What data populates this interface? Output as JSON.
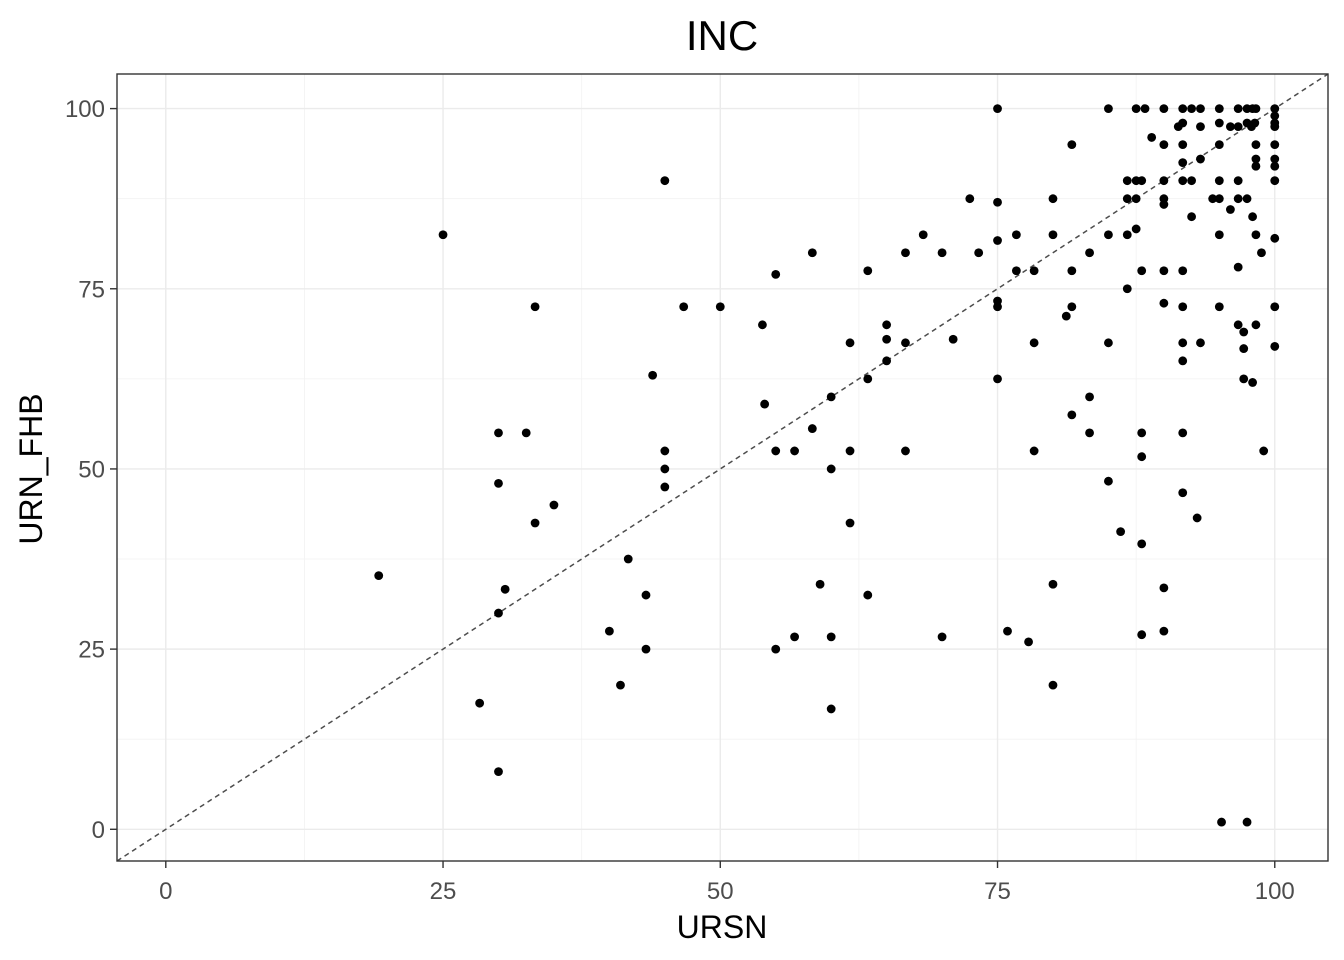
{
  "chart_data": {
    "type": "scatter",
    "title": "INC",
    "xlabel": "URSN",
    "ylabel": "URN_FHB",
    "xlim": [
      -4.4,
      104.8
    ],
    "ylim": [
      -4.4,
      104.8
    ],
    "x_ticks": [
      0,
      25,
      50,
      75,
      100
    ],
    "y_ticks": [
      0,
      25,
      50,
      75,
      100
    ],
    "x_tick_labels": [
      "0",
      "25",
      "50",
      "75",
      "100"
    ],
    "y_tick_labels": [
      "0",
      "25",
      "50",
      "75",
      "100"
    ],
    "grid": true,
    "reference_line": {
      "style": "dashed",
      "slope": 1,
      "intercept": 0
    },
    "colors": {
      "points": "#000000",
      "reference_line": "#4d4d4d",
      "grid": "#ebebeb"
    },
    "points": [
      [
        19.2,
        35.2
      ],
      [
        25,
        82.5
      ],
      [
        28.3,
        17.5
      ],
      [
        30,
        55
      ],
      [
        30,
        48
      ],
      [
        30,
        30
      ],
      [
        30,
        8
      ],
      [
        30.6,
        33.3
      ],
      [
        32.5,
        55
      ],
      [
        33.3,
        72.5
      ],
      [
        33.3,
        42.5
      ],
      [
        35,
        45
      ],
      [
        40,
        27.5
      ],
      [
        41,
        20
      ],
      [
        41.7,
        37.5
      ],
      [
        43.3,
        32.5
      ],
      [
        43.3,
        25
      ],
      [
        43.9,
        63
      ],
      [
        45,
        90
      ],
      [
        45,
        52.5
      ],
      [
        45,
        50
      ],
      [
        45,
        47.5
      ],
      [
        46.7,
        72.5
      ],
      [
        50,
        72.5
      ],
      [
        53.8,
        70
      ],
      [
        54,
        59
      ],
      [
        55,
        77
      ],
      [
        55,
        52.5
      ],
      [
        55,
        25
      ],
      [
        56.7,
        52.5
      ],
      [
        56.7,
        26.7
      ],
      [
        58.3,
        80
      ],
      [
        58.3,
        55.6
      ],
      [
        59,
        34
      ],
      [
        60,
        60
      ],
      [
        60,
        50
      ],
      [
        60,
        26.7
      ],
      [
        60,
        16.7
      ],
      [
        61.7,
        67.5
      ],
      [
        61.7,
        52.5
      ],
      [
        61.7,
        42.5
      ],
      [
        63.3,
        77.5
      ],
      [
        63.3,
        62.5
      ],
      [
        63.3,
        32.5
      ],
      [
        65,
        70
      ],
      [
        65,
        68
      ],
      [
        65,
        65
      ],
      [
        66.7,
        80
      ],
      [
        66.7,
        67.5
      ],
      [
        66.7,
        52.5
      ],
      [
        68.3,
        82.5
      ],
      [
        70,
        80
      ],
      [
        70,
        26.7
      ],
      [
        71,
        68
      ],
      [
        72.5,
        87.5
      ],
      [
        73.3,
        80
      ],
      [
        75,
        100
      ],
      [
        75,
        87
      ],
      [
        75,
        81.7
      ],
      [
        75,
        73.3
      ],
      [
        75,
        72.5
      ],
      [
        75,
        62.5
      ],
      [
        75.9,
        27.5
      ],
      [
        76.7,
        82.5
      ],
      [
        76.7,
        77.5
      ],
      [
        77.8,
        26
      ],
      [
        78.3,
        77.5
      ],
      [
        78.3,
        67.5
      ],
      [
        78.3,
        52.5
      ],
      [
        80,
        87.5
      ],
      [
        80,
        82.5
      ],
      [
        80,
        34
      ],
      [
        80,
        20
      ],
      [
        81.2,
        71.2
      ],
      [
        81.7,
        95
      ],
      [
        81.7,
        77.5
      ],
      [
        81.7,
        72.5
      ],
      [
        81.7,
        57.5
      ],
      [
        83.3,
        80
      ],
      [
        83.3,
        60
      ],
      [
        83.3,
        55
      ],
      [
        85,
        100
      ],
      [
        85,
        82.5
      ],
      [
        85,
        67.5
      ],
      [
        85,
        48.3
      ],
      [
        86.1,
        41.3
      ],
      [
        86.7,
        90
      ],
      [
        86.7,
        87.5
      ],
      [
        86.7,
        82.5
      ],
      [
        86.7,
        75
      ],
      [
        87.5,
        90
      ],
      [
        87.5,
        87.5
      ],
      [
        87.5,
        83.3
      ],
      [
        87.5,
        100
      ],
      [
        88,
        90
      ],
      [
        88,
        77.5
      ],
      [
        88,
        55
      ],
      [
        88,
        51.7
      ],
      [
        88,
        39.6
      ],
      [
        88,
        27
      ],
      [
        88.3,
        100
      ],
      [
        88.9,
        96
      ],
      [
        90,
        100
      ],
      [
        90,
        95
      ],
      [
        90,
        90
      ],
      [
        90,
        87.5
      ],
      [
        90,
        86.7
      ],
      [
        90,
        77.5
      ],
      [
        90,
        73
      ],
      [
        90,
        33.5
      ],
      [
        90,
        27.5
      ],
      [
        91.3,
        97.5
      ],
      [
        91.7,
        100
      ],
      [
        91.7,
        98
      ],
      [
        91.7,
        95
      ],
      [
        91.7,
        92.5
      ],
      [
        91.7,
        90
      ],
      [
        91.7,
        77.5
      ],
      [
        91.7,
        72.5
      ],
      [
        91.7,
        67.5
      ],
      [
        91.7,
        65
      ],
      [
        91.7,
        55
      ],
      [
        91.7,
        46.7
      ],
      [
        92.5,
        100
      ],
      [
        92.5,
        90
      ],
      [
        92.5,
        85
      ],
      [
        93,
        43.2
      ],
      [
        93.3,
        100
      ],
      [
        93.3,
        97.5
      ],
      [
        93.3,
        93
      ],
      [
        93.3,
        67.5
      ],
      [
        94.4,
        87.5
      ],
      [
        95,
        100
      ],
      [
        95,
        98
      ],
      [
        95,
        95
      ],
      [
        95,
        90
      ],
      [
        95,
        87.5
      ],
      [
        95,
        82.5
      ],
      [
        95,
        72.5
      ],
      [
        95.2,
        1
      ],
      [
        96,
        97.5
      ],
      [
        96,
        86
      ],
      [
        96.7,
        100
      ],
      [
        96.7,
        97.5
      ],
      [
        96.7,
        90
      ],
      [
        96.7,
        87.5
      ],
      [
        96.7,
        78
      ],
      [
        96.7,
        70
      ],
      [
        97.2,
        69
      ],
      [
        97.2,
        66.7
      ],
      [
        97.2,
        62.5
      ],
      [
        97.5,
        100
      ],
      [
        97.5,
        98
      ],
      [
        97.5,
        87.5
      ],
      [
        97.5,
        1
      ],
      [
        97.9,
        97.5
      ],
      [
        98,
        100
      ],
      [
        98,
        85
      ],
      [
        98,
        62
      ],
      [
        98.2,
        98
      ],
      [
        98.3,
        100
      ],
      [
        98.3,
        95
      ],
      [
        98.3,
        93
      ],
      [
        98.3,
        92
      ],
      [
        98.3,
        82.5
      ],
      [
        98.3,
        70
      ],
      [
        98.8,
        80
      ],
      [
        99,
        52.5
      ],
      [
        100,
        100
      ],
      [
        100,
        99
      ],
      [
        100,
        98
      ],
      [
        100,
        97.5
      ],
      [
        100,
        95
      ],
      [
        100,
        93
      ],
      [
        100,
        92
      ],
      [
        100,
        90
      ],
      [
        100,
        82
      ],
      [
        100,
        72.5
      ],
      [
        100,
        67
      ]
    ]
  }
}
